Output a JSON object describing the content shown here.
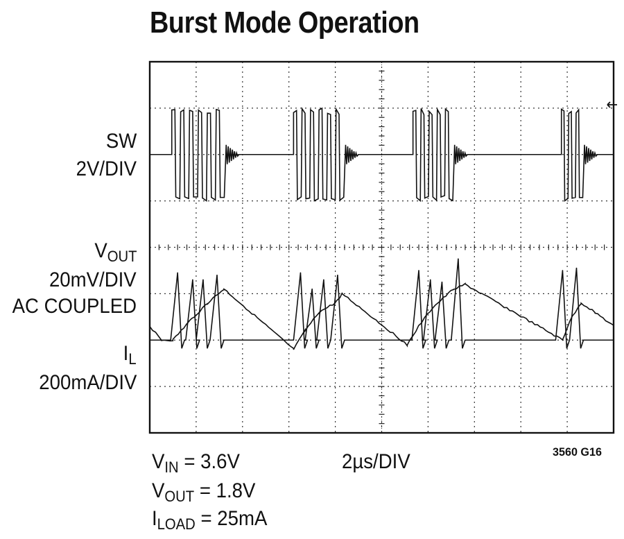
{
  "title": "Burst Mode Operation",
  "channels": [
    {
      "name": "SW",
      "scale": "2V/DIV"
    },
    {
      "name_main": "V",
      "name_sub": "OUT",
      "scale": "20mV/DIV",
      "note": "AC COUPLED"
    },
    {
      "name_main": "I",
      "name_sub": "L",
      "scale": "200mA/DIV"
    }
  ],
  "timebase": "2µs/DIV",
  "conditions": [
    {
      "main": "V",
      "sub": "IN",
      "rest": " = 3.6V"
    },
    {
      "main": "V",
      "sub": "OUT",
      "rest": " = 1.8V"
    },
    {
      "main": "I",
      "sub": "LOAD",
      "rest": " = 25mA"
    }
  ],
  "figure_id": "3560 G16",
  "chart_data": {
    "type": "line",
    "title": "Burst Mode Operation",
    "x_unit": "µs",
    "x_divisions": 10,
    "y_divisions": 8,
    "time_per_div_us": 2,
    "x_range": [
      0,
      20
    ],
    "grid": true,
    "series": [
      {
        "name": "SW",
        "scale": "2V/DIV",
        "baseline_div": 6.0,
        "bursts": [
          {
            "start_us": 0.95,
            "end_us": 3.25,
            "pulses": 6
          },
          {
            "start_us": 6.2,
            "end_us": 8.4,
            "pulses": 6
          },
          {
            "start_us": 11.35,
            "end_us": 13.1,
            "pulses": 5
          },
          {
            "start_us": 17.75,
            "end_us": 18.7,
            "pulses": 3
          }
        ]
      },
      {
        "name": "VOUT",
        "scale": "20mV/DIV",
        "coupling": "AC",
        "x": [
          0,
          0.5,
          1.0,
          1.7,
          2.5,
          3.2,
          6.2,
          6.7,
          7.3,
          8.0,
          8.3,
          11.1,
          11.6,
          12.2,
          13.1,
          13.6,
          17.8,
          18.1,
          18.6,
          19.2,
          20.0
        ],
        "y_div": [
          2.3,
          2.0,
          2.0,
          2.4,
          2.8,
          3.1,
          1.8,
          2.2,
          2.6,
          2.8,
          3.0,
          1.9,
          2.3,
          2.7,
          3.1,
          3.2,
          2.0,
          2.4,
          2.8,
          2.6,
          2.3
        ]
      },
      {
        "name": "IL",
        "scale": "200mA/DIV",
        "baseline_div": 2.0,
        "peaks": [
          {
            "t_us": 1.2,
            "y_div": 3.45
          },
          {
            "t_us": 1.85,
            "y_div": 3.3
          },
          {
            "t_us": 2.3,
            "y_div": 3.3
          },
          {
            "t_us": 2.9,
            "y_div": 3.4
          },
          {
            "t_us": 6.5,
            "y_div": 3.45
          },
          {
            "t_us": 7.0,
            "y_div": 3.1
          },
          {
            "t_us": 7.5,
            "y_div": 3.3
          },
          {
            "t_us": 8.1,
            "y_div": 3.4
          },
          {
            "t_us": 11.6,
            "y_div": 3.5
          },
          {
            "t_us": 12.1,
            "y_div": 3.3
          },
          {
            "t_us": 12.6,
            "y_div": 3.25
          },
          {
            "t_us": 13.3,
            "y_div": 3.75
          },
          {
            "t_us": 17.8,
            "y_div": 3.5
          },
          {
            "t_us": 18.4,
            "y_div": 3.55
          }
        ]
      }
    ]
  }
}
